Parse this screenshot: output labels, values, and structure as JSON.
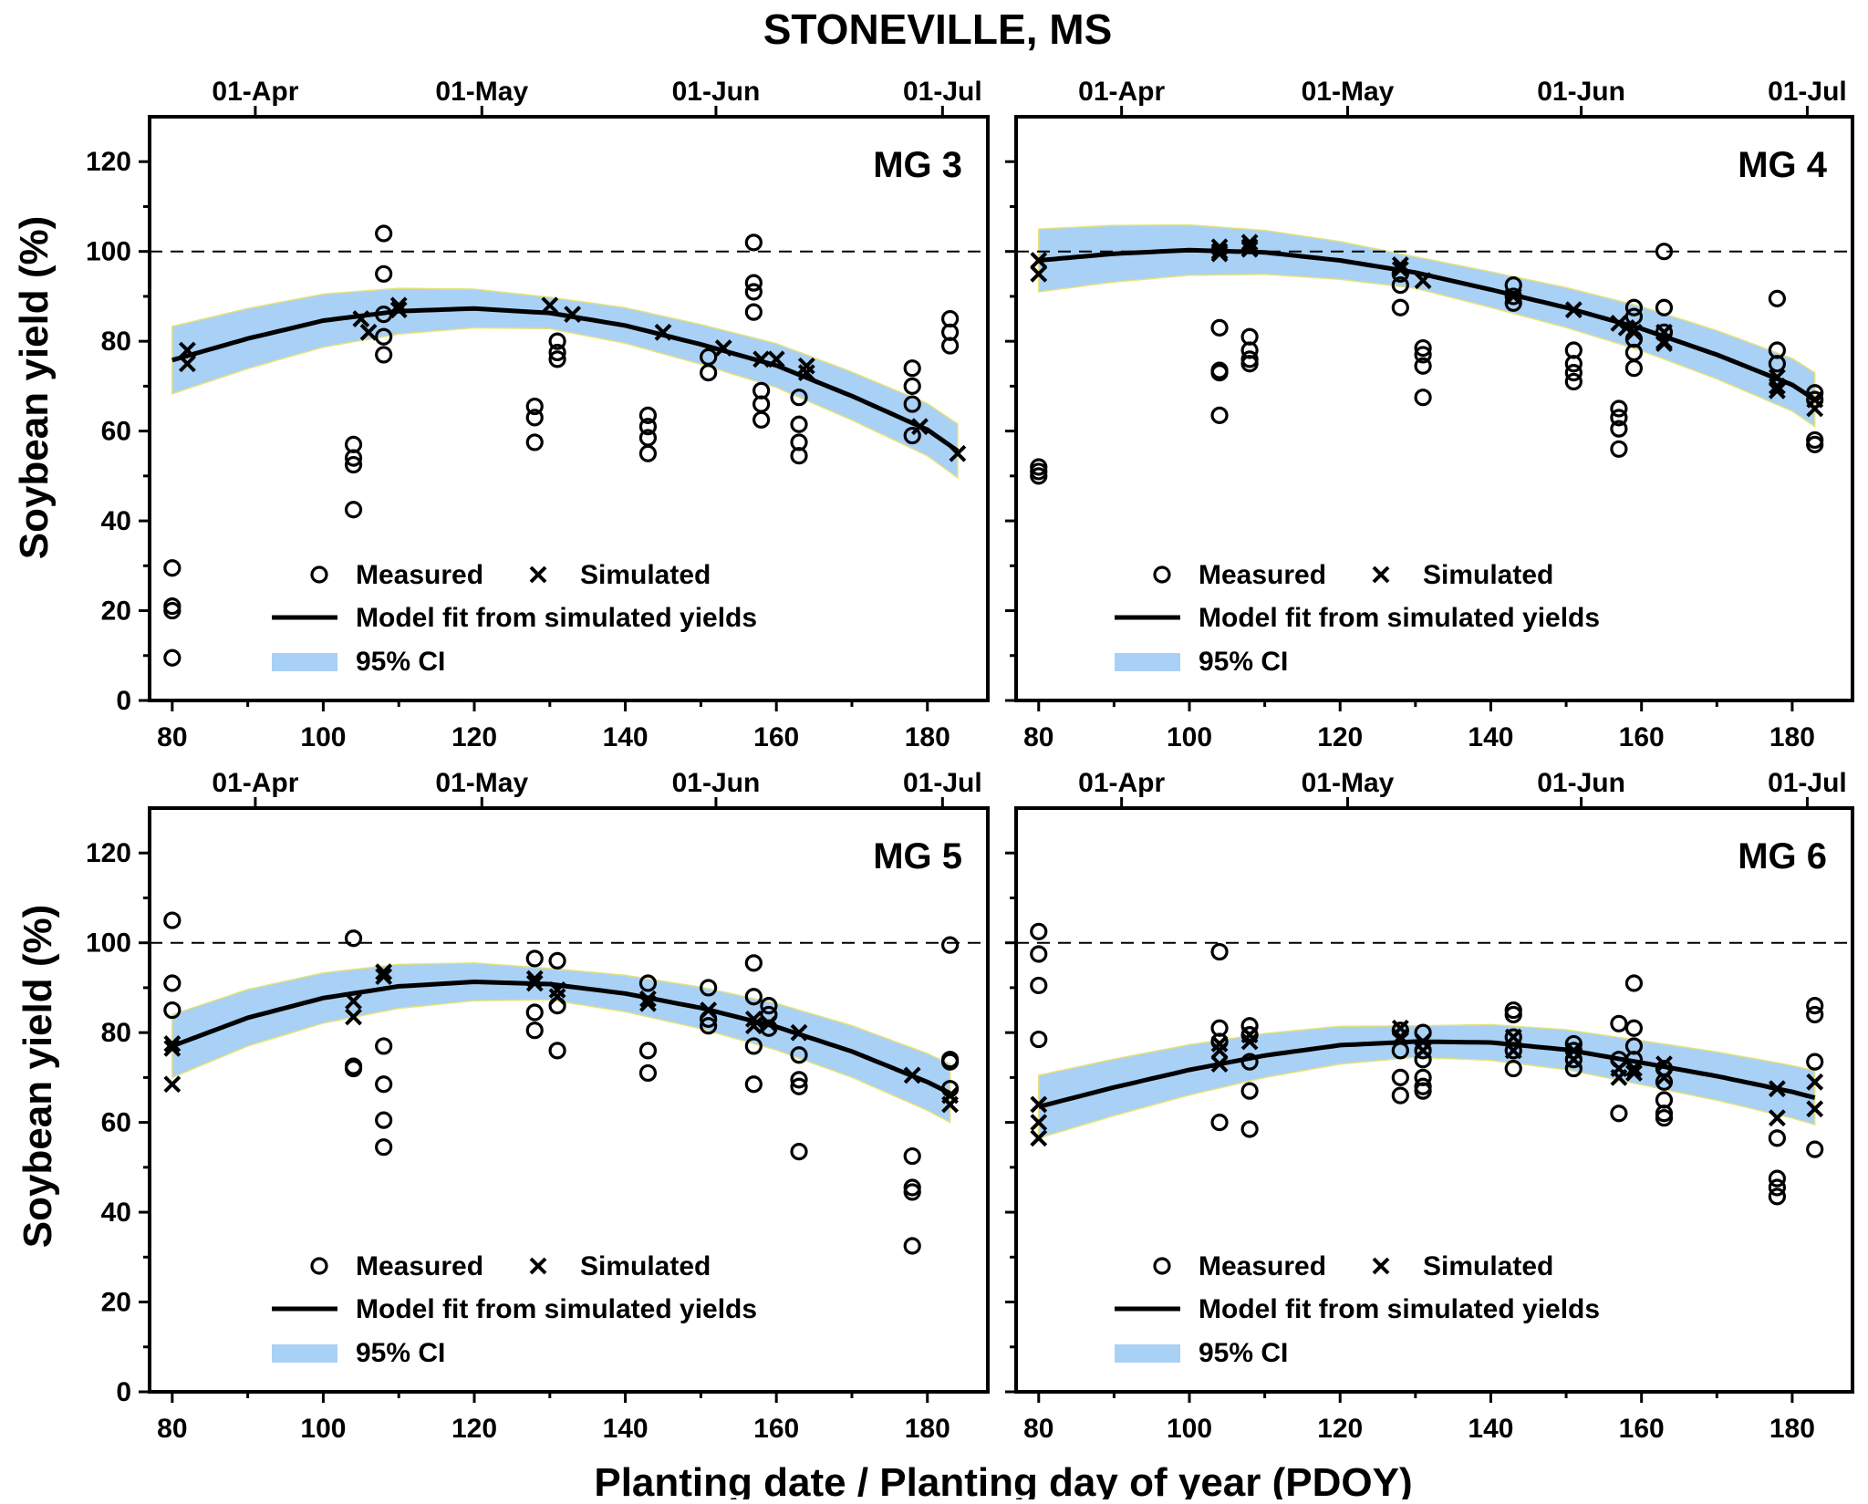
{
  "figure": {
    "title": "STONEVILLE, MS",
    "xlabel": "Planting date / Planting day of year (PDOY)",
    "ylabel": "Soybean yield (%)"
  },
  "legend": {
    "measured": "Measured",
    "simulated": "Simulated",
    "fit": "Model fit from simulated yields",
    "ci": "95% CI"
  },
  "colors": {
    "ci_fill": "#a9d0f5",
    "ci_edge": "#e6e27a",
    "ink": "#000000"
  },
  "chart_data": [
    {
      "type": "scatter",
      "panel": "MG 3",
      "xlim": [
        77,
        188
      ],
      "ylim": [
        0,
        130
      ],
      "x_ticks": [
        80,
        100,
        120,
        140,
        160,
        180
      ],
      "y_ticks": [
        0,
        20,
        40,
        60,
        80,
        100,
        120
      ],
      "date_ticks": [
        {
          "label": "01-Apr",
          "doy": 91
        },
        {
          "label": "01-May",
          "doy": 121
        },
        {
          "label": "01-Jun",
          "doy": 152
        },
        {
          "label": "01-Jul",
          "doy": 182
        }
      ],
      "reference_y": 100,
      "measured": [
        [
          80,
          29.5
        ],
        [
          80,
          21
        ],
        [
          80,
          20
        ],
        [
          80,
          9.5
        ],
        [
          104,
          57
        ],
        [
          104,
          54
        ],
        [
          104,
          52.5
        ],
        [
          104,
          42.5
        ],
        [
          108,
          104
        ],
        [
          108,
          95
        ],
        [
          108,
          86
        ],
        [
          108,
          81
        ],
        [
          108,
          77
        ],
        [
          128,
          65.5
        ],
        [
          128,
          63
        ],
        [
          128,
          57.5
        ],
        [
          131,
          80
        ],
        [
          131,
          77.5
        ],
        [
          131,
          76
        ],
        [
          143,
          63.5
        ],
        [
          143,
          61
        ],
        [
          143,
          58.5
        ],
        [
          143,
          55
        ],
        [
          151,
          76.5
        ],
        [
          151,
          73
        ],
        [
          157,
          102
        ],
        [
          157,
          93
        ],
        [
          157,
          91
        ],
        [
          157,
          86.5
        ],
        [
          158,
          69
        ],
        [
          158,
          66
        ],
        [
          158,
          62.5
        ],
        [
          163,
          67.5
        ],
        [
          163,
          61.5
        ],
        [
          163,
          57.5
        ],
        [
          163,
          54.5
        ],
        [
          178,
          74
        ],
        [
          178,
          70
        ],
        [
          178,
          66
        ],
        [
          178,
          59
        ],
        [
          183,
          85
        ],
        [
          183,
          82
        ],
        [
          183,
          79
        ]
      ],
      "simulated": [
        [
          82,
          78
        ],
        [
          82,
          75
        ],
        [
          105,
          85
        ],
        [
          106,
          82
        ],
        [
          110,
          88
        ],
        [
          110,
          87
        ],
        [
          130,
          88
        ],
        [
          133,
          86
        ],
        [
          145,
          82
        ],
        [
          153,
          78.5
        ],
        [
          158,
          76
        ],
        [
          160,
          76
        ],
        [
          164,
          74.5
        ],
        [
          164,
          73
        ],
        [
          179,
          61
        ],
        [
          184,
          55
        ]
      ],
      "fit": [
        [
          80,
          75.8
        ],
        [
          90,
          80.6
        ],
        [
          100,
          84.6
        ],
        [
          110,
          86.7
        ],
        [
          120,
          87.3
        ],
        [
          130,
          86.3
        ],
        [
          140,
          83.5
        ],
        [
          150,
          79.3
        ],
        [
          160,
          74.6
        ],
        [
          170,
          67.8
        ],
        [
          180,
          60.3
        ],
        [
          184,
          55.6
        ]
      ],
      "ci_halfwidth": [
        [
          80,
          7.5
        ],
        [
          130,
          3.5
        ],
        [
          184,
          6
        ]
      ]
    },
    {
      "type": "scatter",
      "panel": "MG 4",
      "xlim": [
        77,
        188
      ],
      "ylim": [
        0,
        130
      ],
      "x_ticks": [
        80,
        100,
        120,
        140,
        160,
        180
      ],
      "y_ticks": [
        0,
        20,
        40,
        60,
        80,
        100,
        120
      ],
      "date_ticks": [
        {
          "label": "01-Apr",
          "doy": 91
        },
        {
          "label": "01-May",
          "doy": 121
        },
        {
          "label": "01-Jun",
          "doy": 152
        },
        {
          "label": "01-Jul",
          "doy": 182
        }
      ],
      "reference_y": 100,
      "measured": [
        [
          80,
          52
        ],
        [
          80,
          51
        ],
        [
          80,
          50
        ],
        [
          104,
          83
        ],
        [
          104,
          73.5
        ],
        [
          104,
          73
        ],
        [
          104,
          63.5
        ],
        [
          108,
          81
        ],
        [
          108,
          78
        ],
        [
          108,
          76
        ],
        [
          108,
          75
        ],
        [
          128,
          95
        ],
        [
          128,
          92.5
        ],
        [
          128,
          87.5
        ],
        [
          131,
          78.5
        ],
        [
          131,
          77
        ],
        [
          131,
          74.5
        ],
        [
          131,
          67.5
        ],
        [
          143,
          92.5
        ],
        [
          143,
          90
        ],
        [
          143,
          88.5
        ],
        [
          151,
          78
        ],
        [
          151,
          75
        ],
        [
          151,
          73
        ],
        [
          151,
          71
        ],
        [
          157,
          65
        ],
        [
          157,
          63
        ],
        [
          157,
          60.5
        ],
        [
          157,
          56
        ],
        [
          159,
          87.5
        ],
        [
          159,
          85.5
        ],
        [
          159,
          80.5
        ],
        [
          159,
          77.5
        ],
        [
          159,
          74
        ],
        [
          163,
          100
        ],
        [
          163,
          87.5
        ],
        [
          163,
          82
        ],
        [
          178,
          89.5
        ],
        [
          178,
          78
        ],
        [
          178,
          75
        ],
        [
          183,
          68.5
        ],
        [
          183,
          67
        ],
        [
          183,
          58
        ],
        [
          183,
          57
        ]
      ],
      "simulated": [
        [
          80,
          98
        ],
        [
          80,
          95
        ],
        [
          104,
          101
        ],
        [
          104,
          100
        ],
        [
          104,
          99.5
        ],
        [
          108,
          102
        ],
        [
          108,
          101
        ],
        [
          108,
          100.5
        ],
        [
          128,
          97
        ],
        [
          128,
          96
        ],
        [
          131,
          93.5
        ],
        [
          143,
          90
        ],
        [
          151,
          87
        ],
        [
          157,
          84
        ],
        [
          158,
          83
        ],
        [
          159,
          82
        ],
        [
          163,
          82
        ],
        [
          163,
          80
        ],
        [
          163,
          79.5
        ],
        [
          178,
          72
        ],
        [
          178,
          70
        ],
        [
          178,
          69
        ],
        [
          183,
          67
        ],
        [
          183,
          65
        ]
      ],
      "fit": [
        [
          80,
          98
        ],
        [
          90,
          99.5
        ],
        [
          100,
          100.3
        ],
        [
          110,
          99.8
        ],
        [
          120,
          98
        ],
        [
          130,
          95.3
        ],
        [
          140,
          91.5
        ],
        [
          150,
          87.5
        ],
        [
          160,
          82.8
        ],
        [
          170,
          77
        ],
        [
          180,
          70.3
        ],
        [
          183,
          67
        ]
      ],
      "ci_halfwidth": [
        [
          80,
          7
        ],
        [
          130,
          3.5
        ],
        [
          183,
          6
        ]
      ]
    },
    {
      "type": "scatter",
      "panel": "MG 5",
      "xlim": [
        77,
        188
      ],
      "ylim": [
        0,
        130
      ],
      "x_ticks": [
        80,
        100,
        120,
        140,
        160,
        180
      ],
      "y_ticks": [
        0,
        20,
        40,
        60,
        80,
        100,
        120
      ],
      "date_ticks": [
        {
          "label": "01-Apr",
          "doy": 91
        },
        {
          "label": "01-May",
          "doy": 121
        },
        {
          "label": "01-Jun",
          "doy": 152
        },
        {
          "label": "01-Jul",
          "doy": 182
        }
      ],
      "reference_y": 100,
      "measured": [
        [
          80,
          105
        ],
        [
          80,
          91
        ],
        [
          80,
          85
        ],
        [
          104,
          101
        ],
        [
          104,
          72.5
        ],
        [
          104,
          72
        ],
        [
          108,
          77
        ],
        [
          108,
          68.5
        ],
        [
          108,
          60.5
        ],
        [
          108,
          54.5
        ],
        [
          128,
          96.5
        ],
        [
          128,
          84.5
        ],
        [
          128,
          80.5
        ],
        [
          131,
          96
        ],
        [
          131,
          86
        ],
        [
          131,
          76
        ],
        [
          143,
          91
        ],
        [
          143,
          76
        ],
        [
          143,
          71
        ],
        [
          151,
          90
        ],
        [
          151,
          83
        ],
        [
          151,
          81.5
        ],
        [
          157,
          95.5
        ],
        [
          157,
          88
        ],
        [
          157,
          77
        ],
        [
          157,
          68.5
        ],
        [
          159,
          86
        ],
        [
          159,
          84
        ],
        [
          159,
          81
        ],
        [
          163,
          75
        ],
        [
          163,
          69.5
        ],
        [
          163,
          68
        ],
        [
          163,
          53.5
        ],
        [
          178,
          52.5
        ],
        [
          178,
          45.5
        ],
        [
          178,
          44.5
        ],
        [
          178,
          32.5
        ],
        [
          183,
          99.5
        ],
        [
          183,
          74
        ],
        [
          183,
          73.5
        ],
        [
          183,
          67.5
        ]
      ],
      "simulated": [
        [
          80,
          77.5
        ],
        [
          80,
          76.5
        ],
        [
          80,
          68.5
        ],
        [
          104,
          87
        ],
        [
          104,
          83.5
        ],
        [
          108,
          93.5
        ],
        [
          108,
          92.5
        ],
        [
          128,
          92
        ],
        [
          128,
          91
        ],
        [
          131,
          89.5
        ],
        [
          131,
          88
        ],
        [
          143,
          87.5
        ],
        [
          143,
          86.5
        ],
        [
          151,
          85
        ],
        [
          157,
          83
        ],
        [
          157,
          81.5
        ],
        [
          159,
          82
        ],
        [
          163,
          80
        ],
        [
          178,
          70.5
        ],
        [
          183,
          66
        ],
        [
          183,
          64
        ]
      ],
      "fit": [
        [
          80,
          77
        ],
        [
          90,
          83.3
        ],
        [
          100,
          87.7
        ],
        [
          110,
          90.3
        ],
        [
          120,
          91.3
        ],
        [
          130,
          90.8
        ],
        [
          140,
          88.7
        ],
        [
          150,
          85.5
        ],
        [
          160,
          81.3
        ],
        [
          170,
          75.8
        ],
        [
          180,
          69
        ],
        [
          183,
          66.5
        ]
      ],
      "ci_halfwidth": [
        [
          80,
          7
        ],
        [
          130,
          3.5
        ],
        [
          183,
          6.5
        ]
      ]
    },
    {
      "type": "scatter",
      "panel": "MG 6",
      "xlim": [
        77,
        188
      ],
      "ylim": [
        0,
        130
      ],
      "x_ticks": [
        80,
        100,
        120,
        140,
        160,
        180
      ],
      "y_ticks": [
        0,
        20,
        40,
        60,
        80,
        100,
        120
      ],
      "date_ticks": [
        {
          "label": "01-Apr",
          "doy": 91
        },
        {
          "label": "01-May",
          "doy": 121
        },
        {
          "label": "01-Jun",
          "doy": 152
        },
        {
          "label": "01-Jul",
          "doy": 182
        }
      ],
      "reference_y": 100,
      "measured": [
        [
          80,
          102.5
        ],
        [
          80,
          97.5
        ],
        [
          80,
          90.5
        ],
        [
          80,
          78.5
        ],
        [
          104,
          98
        ],
        [
          104,
          81
        ],
        [
          104,
          78
        ],
        [
          104,
          60
        ],
        [
          108,
          81.5
        ],
        [
          108,
          79.5
        ],
        [
          108,
          73.5
        ],
        [
          108,
          67
        ],
        [
          108,
          58.5
        ],
        [
          128,
          80.5
        ],
        [
          128,
          76
        ],
        [
          128,
          70
        ],
        [
          128,
          66
        ],
        [
          131,
          80
        ],
        [
          131,
          76
        ],
        [
          131,
          74
        ],
        [
          131,
          70
        ],
        [
          131,
          68
        ],
        [
          131,
          67
        ],
        [
          143,
          85
        ],
        [
          143,
          84
        ],
        [
          143,
          79
        ],
        [
          143,
          76
        ],
        [
          143,
          72
        ],
        [
          151,
          77.5
        ],
        [
          151,
          76
        ],
        [
          151,
          74
        ],
        [
          151,
          72
        ],
        [
          157,
          82
        ],
        [
          157,
          74
        ],
        [
          157,
          62
        ],
        [
          159,
          91
        ],
        [
          159,
          81
        ],
        [
          159,
          77
        ],
        [
          159,
          74
        ],
        [
          163,
          72
        ],
        [
          163,
          69
        ],
        [
          163,
          65
        ],
        [
          163,
          62
        ],
        [
          163,
          61
        ],
        [
          178,
          56.5
        ],
        [
          178,
          47.5
        ],
        [
          178,
          45.5
        ],
        [
          178,
          43.5
        ],
        [
          183,
          86
        ],
        [
          183,
          84
        ],
        [
          183,
          73.5
        ],
        [
          183,
          54
        ]
      ],
      "simulated": [
        [
          80,
          64
        ],
        [
          80,
          60
        ],
        [
          80,
          56.5
        ],
        [
          104,
          77.5
        ],
        [
          104,
          76
        ],
        [
          104,
          73
        ],
        [
          108,
          79.5
        ],
        [
          108,
          78
        ],
        [
          128,
          81
        ],
        [
          128,
          79
        ],
        [
          131,
          78
        ],
        [
          131,
          76
        ],
        [
          143,
          79
        ],
        [
          143,
          76
        ],
        [
          151,
          76
        ],
        [
          151,
          74
        ],
        [
          157,
          72
        ],
        [
          157,
          70
        ],
        [
          159,
          72
        ],
        [
          159,
          71
        ],
        [
          163,
          73
        ],
        [
          163,
          70
        ],
        [
          178,
          67.5
        ],
        [
          178,
          61
        ],
        [
          183,
          69
        ],
        [
          183,
          63
        ]
      ],
      "fit": [
        [
          80,
          63.5
        ],
        [
          90,
          67.8
        ],
        [
          100,
          71.7
        ],
        [
          110,
          74.9
        ],
        [
          120,
          77.2
        ],
        [
          130,
          78
        ],
        [
          140,
          77.8
        ],
        [
          150,
          76.2
        ],
        [
          160,
          73.3
        ],
        [
          170,
          70.3
        ],
        [
          180,
          66.8
        ],
        [
          183,
          65.5
        ]
      ],
      "ci_halfwidth": [
        [
          80,
          7
        ],
        [
          130,
          3.5
        ],
        [
          183,
          6
        ]
      ]
    }
  ]
}
